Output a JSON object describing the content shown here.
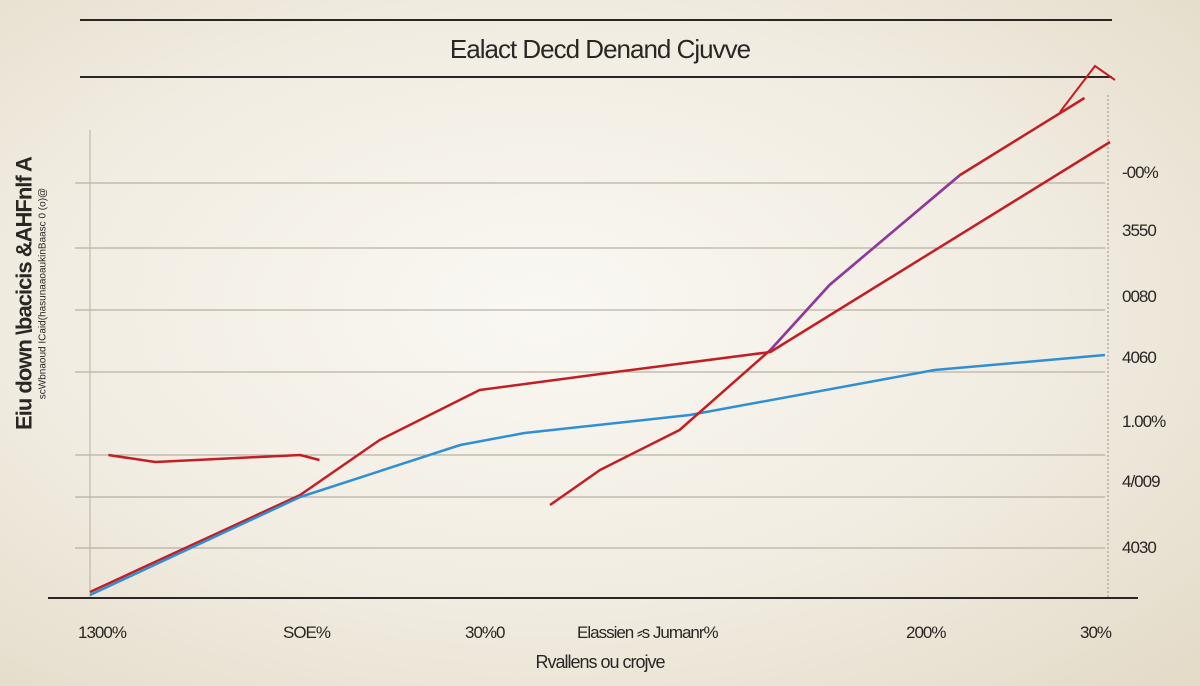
{
  "chart_data": {
    "type": "line",
    "title": "Ealact Decd Denand Cjuvve",
    "ylabel": "Eiu down \\bacicis &AHFnlf A",
    "ylabel_sub": "scWbnaoud ICaid(hasunaaoaukinBaasc 0 (o)@",
    "xlabel": "Rvallens ou crojve",
    "x_axis_title_inline": "Elassien ⸗s Jumanr%",
    "x_tick_labels": [
      "1300%",
      "SOE%",
      "30%0",
      "200%",
      "30%"
    ],
    "right_tick_labels": [
      "-00%",
      "3550",
      "0080",
      "4060",
      "1.00%",
      "4/009",
      "4030"
    ],
    "xlim": [
      0,
      100
    ],
    "ylim": [
      0,
      100
    ],
    "grid": true,
    "colors": {
      "red": "#c41e24",
      "blue": "#2f8fd6",
      "purple": "#8a3aa0",
      "axis": "#2a2624"
    },
    "series": [
      {
        "color": "#c41e24",
        "x": [
          0,
          20.6,
          28.4,
          38.2,
          51.5,
          66.7,
          100
        ],
        "y": [
          1.2,
          20.6,
          31.6,
          41.6,
          45.2,
          49.2,
          91.2
        ]
      },
      {
        "color": "#2f8fd6",
        "x": [
          0,
          20.6,
          36.3,
          42.6,
          58.8,
          82.8,
          99.5
        ],
        "y": [
          0.6,
          20.2,
          30.6,
          33,
          36.6,
          45.6,
          48.6
        ]
      },
      {
        "color": "#c41e24",
        "x": [
          45.1,
          50,
          57.8,
          66.7,
          72.5,
          85.3,
          97.5
        ],
        "y": [
          18.6,
          25.6,
          33.6,
          49.6,
          62.6,
          84.6,
          100
        ]
      },
      {
        "color": "#8a3aa0",
        "x": [
          66.7,
          72.5,
          85.3
        ],
        "y": [
          49.6,
          62.6,
          84.6
        ]
      },
      {
        "color": "#c41e24",
        "x": [
          1.8,
          6.4,
          20.6,
          22.5
        ],
        "y": [
          28.6,
          27.2,
          28.6,
          27.6
        ]
      }
    ]
  }
}
